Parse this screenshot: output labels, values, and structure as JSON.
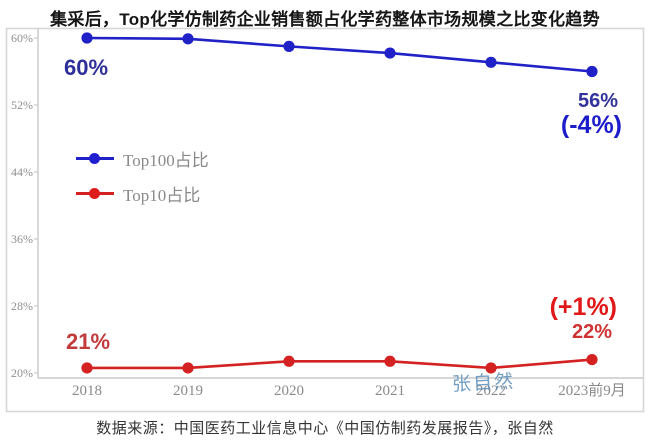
{
  "title": "集采后，Top化学仿制药企业销售额占化学药整体市场规模之比变化趋势",
  "chart_data": {
    "type": "line",
    "title": "集采后，Top化学仿制药企业销售额占化学药整体市场规模之比变化趋势",
    "categories": [
      "2018",
      "2019",
      "2020",
      "2021",
      "2022",
      "2023前9月"
    ],
    "series": [
      {
        "name": "Top100占比",
        "color": "#2121c8",
        "values": [
          60,
          59.9,
          59,
          58.2,
          57.1,
          56
        ]
      },
      {
        "name": "Top10占比",
        "color": "#d42222",
        "values": [
          20.6,
          20.6,
          21.4,
          21.4,
          20.6,
          21.6
        ]
      }
    ],
    "ylim": [
      20,
      60
    ],
    "y_ticks": [
      60,
      52,
      44,
      36,
      28,
      20
    ],
    "y_tick_labels": [
      "60%",
      "52%",
      "44%",
      "36%",
      "28%",
      "20%"
    ],
    "grid": false,
    "legend_position": "upper-left-inside",
    "annotations": {
      "blue_start": "60%",
      "blue_end": "56%",
      "blue_change": "(-4%)",
      "red_start": "21%",
      "red_end": "22%",
      "red_change": "(+1%)"
    }
  },
  "colors": {
    "blue_line": "#2121c8",
    "red_line": "#d42222",
    "axis_gray": "#c9c9c9",
    "frame_gray": "#d7d7d7",
    "tick_text": "#8a8a8a",
    "blue_annotation": "#2f2f9b",
    "blue_change": "#1c1ccb",
    "red_annotation": "#c23b3b",
    "red_change": "#e01818",
    "watermark_blue": "#5c8eba"
  },
  "watermark": "张自然",
  "caption": "数据来源：中国医药工业信息中心《中国仿制药发展报告》，张自然"
}
